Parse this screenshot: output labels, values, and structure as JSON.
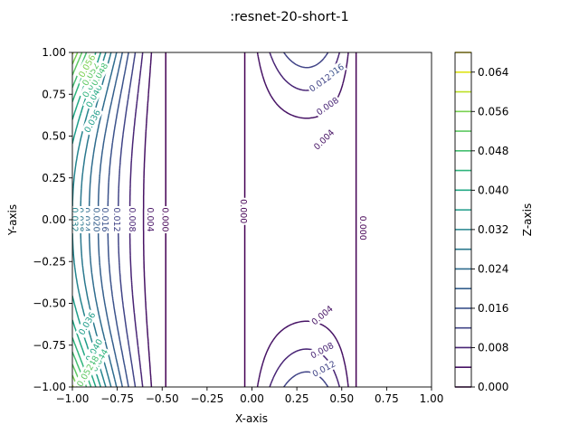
{
  "chart_data": {
    "type": "contour",
    "title": ":resnet-20-short-1",
    "xlabel": "X-axis",
    "ylabel": "Y-axis",
    "colorbar_label": "Z-axis",
    "xlim": [
      -1.0,
      1.0
    ],
    "ylim": [
      -1.0,
      1.0
    ],
    "x_ticks": [
      "−1.00",
      "−0.75",
      "−0.50",
      "−0.25",
      "0.00",
      "0.25",
      "0.50",
      "0.75",
      "1.00"
    ],
    "y_ticks": [
      "−1.00",
      "−0.75",
      "−0.50",
      "−0.25",
      "0.00",
      "0.25",
      "0.50",
      "0.75",
      "1.00"
    ],
    "x_tick_values": [
      -1.0,
      -0.75,
      -0.5,
      -0.25,
      0.0,
      0.25,
      0.5,
      0.75,
      1.0
    ],
    "y_tick_values": [
      -1.0,
      -0.75,
      -0.5,
      -0.25,
      0.0,
      0.25,
      0.5,
      0.75,
      1.0
    ],
    "colorbar_ticks": [
      "0.000",
      "0.008",
      "0.016",
      "0.024",
      "0.032",
      "0.040",
      "0.048",
      "0.056",
      "0.064"
    ],
    "colorbar_tick_values": [
      0.0,
      0.008,
      0.016,
      0.024,
      0.032,
      0.04,
      0.048,
      0.056,
      0.064
    ],
    "levels": [
      0.0,
      0.004,
      0.008,
      0.012,
      0.016,
      0.02,
      0.024,
      0.028,
      0.032,
      0.036,
      0.04,
      0.044,
      0.048,
      0.052,
      0.056,
      0.06,
      0.064,
      0.068
    ],
    "colors": [
      "#440154",
      "#471365",
      "#482475",
      "#463480",
      "#414487",
      "#3b528b",
      "#355f8d",
      "#2f6c8e",
      "#2a788e",
      "#25848e",
      "#21918c",
      "#1e9c89",
      "#22a884",
      "#2fb47c",
      "#44bf70",
      "#5ec962",
      "#7ad151",
      "#9bd93c",
      "#bddf26",
      "#dfe318",
      "#fde725"
    ],
    "contour_labels": [
      {
        "text": "0.000",
        "x": -0.48,
        "y": 0.0,
        "rot": 90
      },
      {
        "text": "0.004",
        "x": -0.565,
        "y": 0.0,
        "rot": 90
      },
      {
        "text": "0.008",
        "x": -0.665,
        "y": 0.0,
        "rot": 90
      },
      {
        "text": "0.012",
        "x": -0.75,
        "y": 0.0,
        "rot": 90
      },
      {
        "text": "0.016",
        "x": -0.815,
        "y": 0.0,
        "rot": 90
      },
      {
        "text": "0.020",
        "x": -0.865,
        "y": 0.0,
        "rot": 90
      },
      {
        "text": "0.024",
        "x": -0.92,
        "y": 0.0,
        "rot": 90
      },
      {
        "text": "0.028",
        "x": -0.955,
        "y": 0.0,
        "rot": 90
      },
      {
        "text": "0.032",
        "x": -0.985,
        "y": 0.0,
        "rot": 90
      },
      {
        "text": "0.000",
        "x": -0.045,
        "y": 0.05,
        "rot": 90
      },
      {
        "text": "0.000",
        "x": 0.62,
        "y": -0.05,
        "rot": 90
      },
      {
        "text": "0.016",
        "x": 0.45,
        "y": 0.88,
        "rot": -35
      },
      {
        "text": "0.012",
        "x": 0.38,
        "y": 0.82,
        "rot": -35
      },
      {
        "text": "0.008",
        "x": 0.42,
        "y": 0.68,
        "rot": -35
      },
      {
        "text": "0.004",
        "x": 0.4,
        "y": 0.48,
        "rot": -45
      },
      {
        "text": "0.004",
        "x": 0.39,
        "y": -0.57,
        "rot": -40
      },
      {
        "text": "0.008",
        "x": 0.39,
        "y": -0.78,
        "rot": -28
      },
      {
        "text": "0.012",
        "x": 0.4,
        "y": -0.89,
        "rot": -28
      },
      {
        "text": "0.036",
        "x": -0.89,
        "y": 0.59,
        "rot": -62
      },
      {
        "text": "0.040",
        "x": -0.88,
        "y": 0.74,
        "rot": -62
      },
      {
        "text": "0.044",
        "x": -0.9,
        "y": 0.8,
        "rot": -62
      },
      {
        "text": "0.048",
        "x": -0.85,
        "y": 0.87,
        "rot": -60
      },
      {
        "text": "0.052",
        "x": -0.9,
        "y": 0.87,
        "rot": -60
      },
      {
        "text": "0.056",
        "x": -0.92,
        "y": 0.92,
        "rot": -60
      },
      {
        "text": "0.036",
        "x": -0.92,
        "y": -0.62,
        "rot": -60
      },
      {
        "text": "0.040",
        "x": -0.88,
        "y": -0.78,
        "rot": -60
      },
      {
        "text": "0.044",
        "x": -0.85,
        "y": -0.84,
        "rot": -60
      },
      {
        "text": "0.048",
        "x": -0.9,
        "y": -0.88,
        "rot": -60
      },
      {
        "text": "0.052",
        "x": -0.93,
        "y": -0.93,
        "rot": -60
      }
    ],
    "grid": false
  }
}
